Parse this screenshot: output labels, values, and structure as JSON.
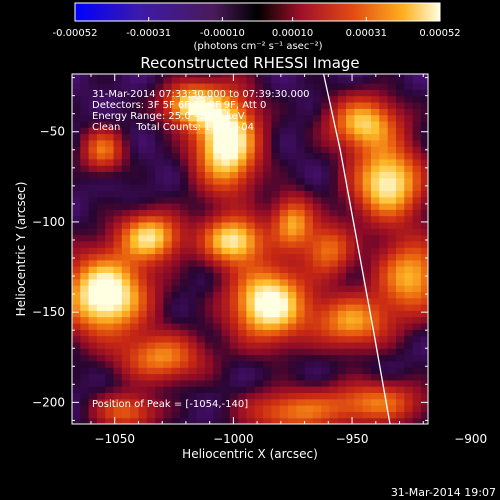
{
  "colorbar": {
    "tick_labels": [
      "-0.00052",
      "-0.00031",
      "-0.00010",
      "0.00010",
      "0.00031",
      "0.00052"
    ],
    "tick_values": [
      -0.00052,
      -0.00031,
      -0.0001,
      0.0001,
      0.00031,
      0.00052
    ],
    "range": [
      -0.00052,
      0.00052
    ],
    "units": "(photons cm⁻² s⁻¹ asec⁻²)"
  },
  "chart_data": {
    "type": "heatmap",
    "title": "Reconstructed RHESSI Image",
    "xlabel": "Heliocentric X (arcsec)",
    "ylabel": "Heliocentric Y (arcsec)",
    "xlim": [
      -1068,
      -918
    ],
    "ylim": [
      -212,
      -18
    ],
    "x_ticks": [
      -1050,
      -1000,
      -950,
      -900
    ],
    "y_ticks": [
      -50,
      -100,
      -150,
      -200
    ],
    "x_tick_labels": [
      "−1050",
      "−1000",
      "−950",
      "−900"
    ],
    "y_tick_labels": [
      "−50",
      "−100",
      "−150",
      "−200"
    ],
    "colormap": "blue-purple-red-yellow-white",
    "annotations": [
      "31-Mar-2014 07:33:30.000 to 07:39:30.000",
      "Detectors: 3F 5F 6F 7F 8F 9F, Att 0",
      "Energy Range: 25.0 - 50.0 keV",
      "Clean     Total Counts: 1.67E+04"
    ],
    "peak_label": "Position of Peak = [-1054,-140]",
    "peak": [
      -1054,
      -140
    ],
    "limb_points": [
      [
        -962,
        -18
      ],
      [
        -955,
        -60
      ],
      [
        -948,
        -110
      ],
      [
        -941,
        -160
      ],
      [
        -934,
        -212
      ]
    ],
    "sources": [
      {
        "x": -1003,
        "y": -55,
        "sx": 9,
        "sy": 18,
        "a": 1.0
      },
      {
        "x": -1018,
        "y": -35,
        "sx": 8,
        "sy": 8,
        "a": 0.75
      },
      {
        "x": -1054,
        "y": -140,
        "sx": 12,
        "sy": 15,
        "a": 1.0
      },
      {
        "x": -1035,
        "y": -108,
        "sx": 9,
        "sy": 9,
        "a": 0.75
      },
      {
        "x": -985,
        "y": -145,
        "sx": 11,
        "sy": 14,
        "a": 0.95
      },
      {
        "x": -1000,
        "y": -110,
        "sx": 9,
        "sy": 9,
        "a": 0.8
      },
      {
        "x": -975,
        "y": -100,
        "sx": 6,
        "sy": 10,
        "a": 0.6
      },
      {
        "x": -935,
        "y": -78,
        "sx": 10,
        "sy": 14,
        "a": 0.85
      },
      {
        "x": -945,
        "y": -45,
        "sx": 10,
        "sy": 10,
        "a": 0.7
      },
      {
        "x": -925,
        "y": -130,
        "sx": 10,
        "sy": 14,
        "a": 0.65
      },
      {
        "x": -950,
        "y": -155,
        "sx": 11,
        "sy": 10,
        "a": 0.6
      },
      {
        "x": -1030,
        "y": -175,
        "sx": 12,
        "sy": 9,
        "a": 0.55
      },
      {
        "x": -975,
        "y": -205,
        "sx": 14,
        "sy": 8,
        "a": 0.5
      },
      {
        "x": -940,
        "y": -200,
        "sx": 14,
        "sy": 8,
        "a": 0.5
      },
      {
        "x": -1055,
        "y": -60,
        "sx": 6,
        "sy": 8,
        "a": 0.5
      },
      {
        "x": -960,
        "y": -115,
        "sx": 7,
        "sy": 10,
        "a": 0.5
      },
      {
        "x": -1045,
        "y": -205,
        "sx": 9,
        "sy": 7,
        "a": 0.45
      }
    ]
  },
  "timestamp": "31-Mar-2014 19:07"
}
